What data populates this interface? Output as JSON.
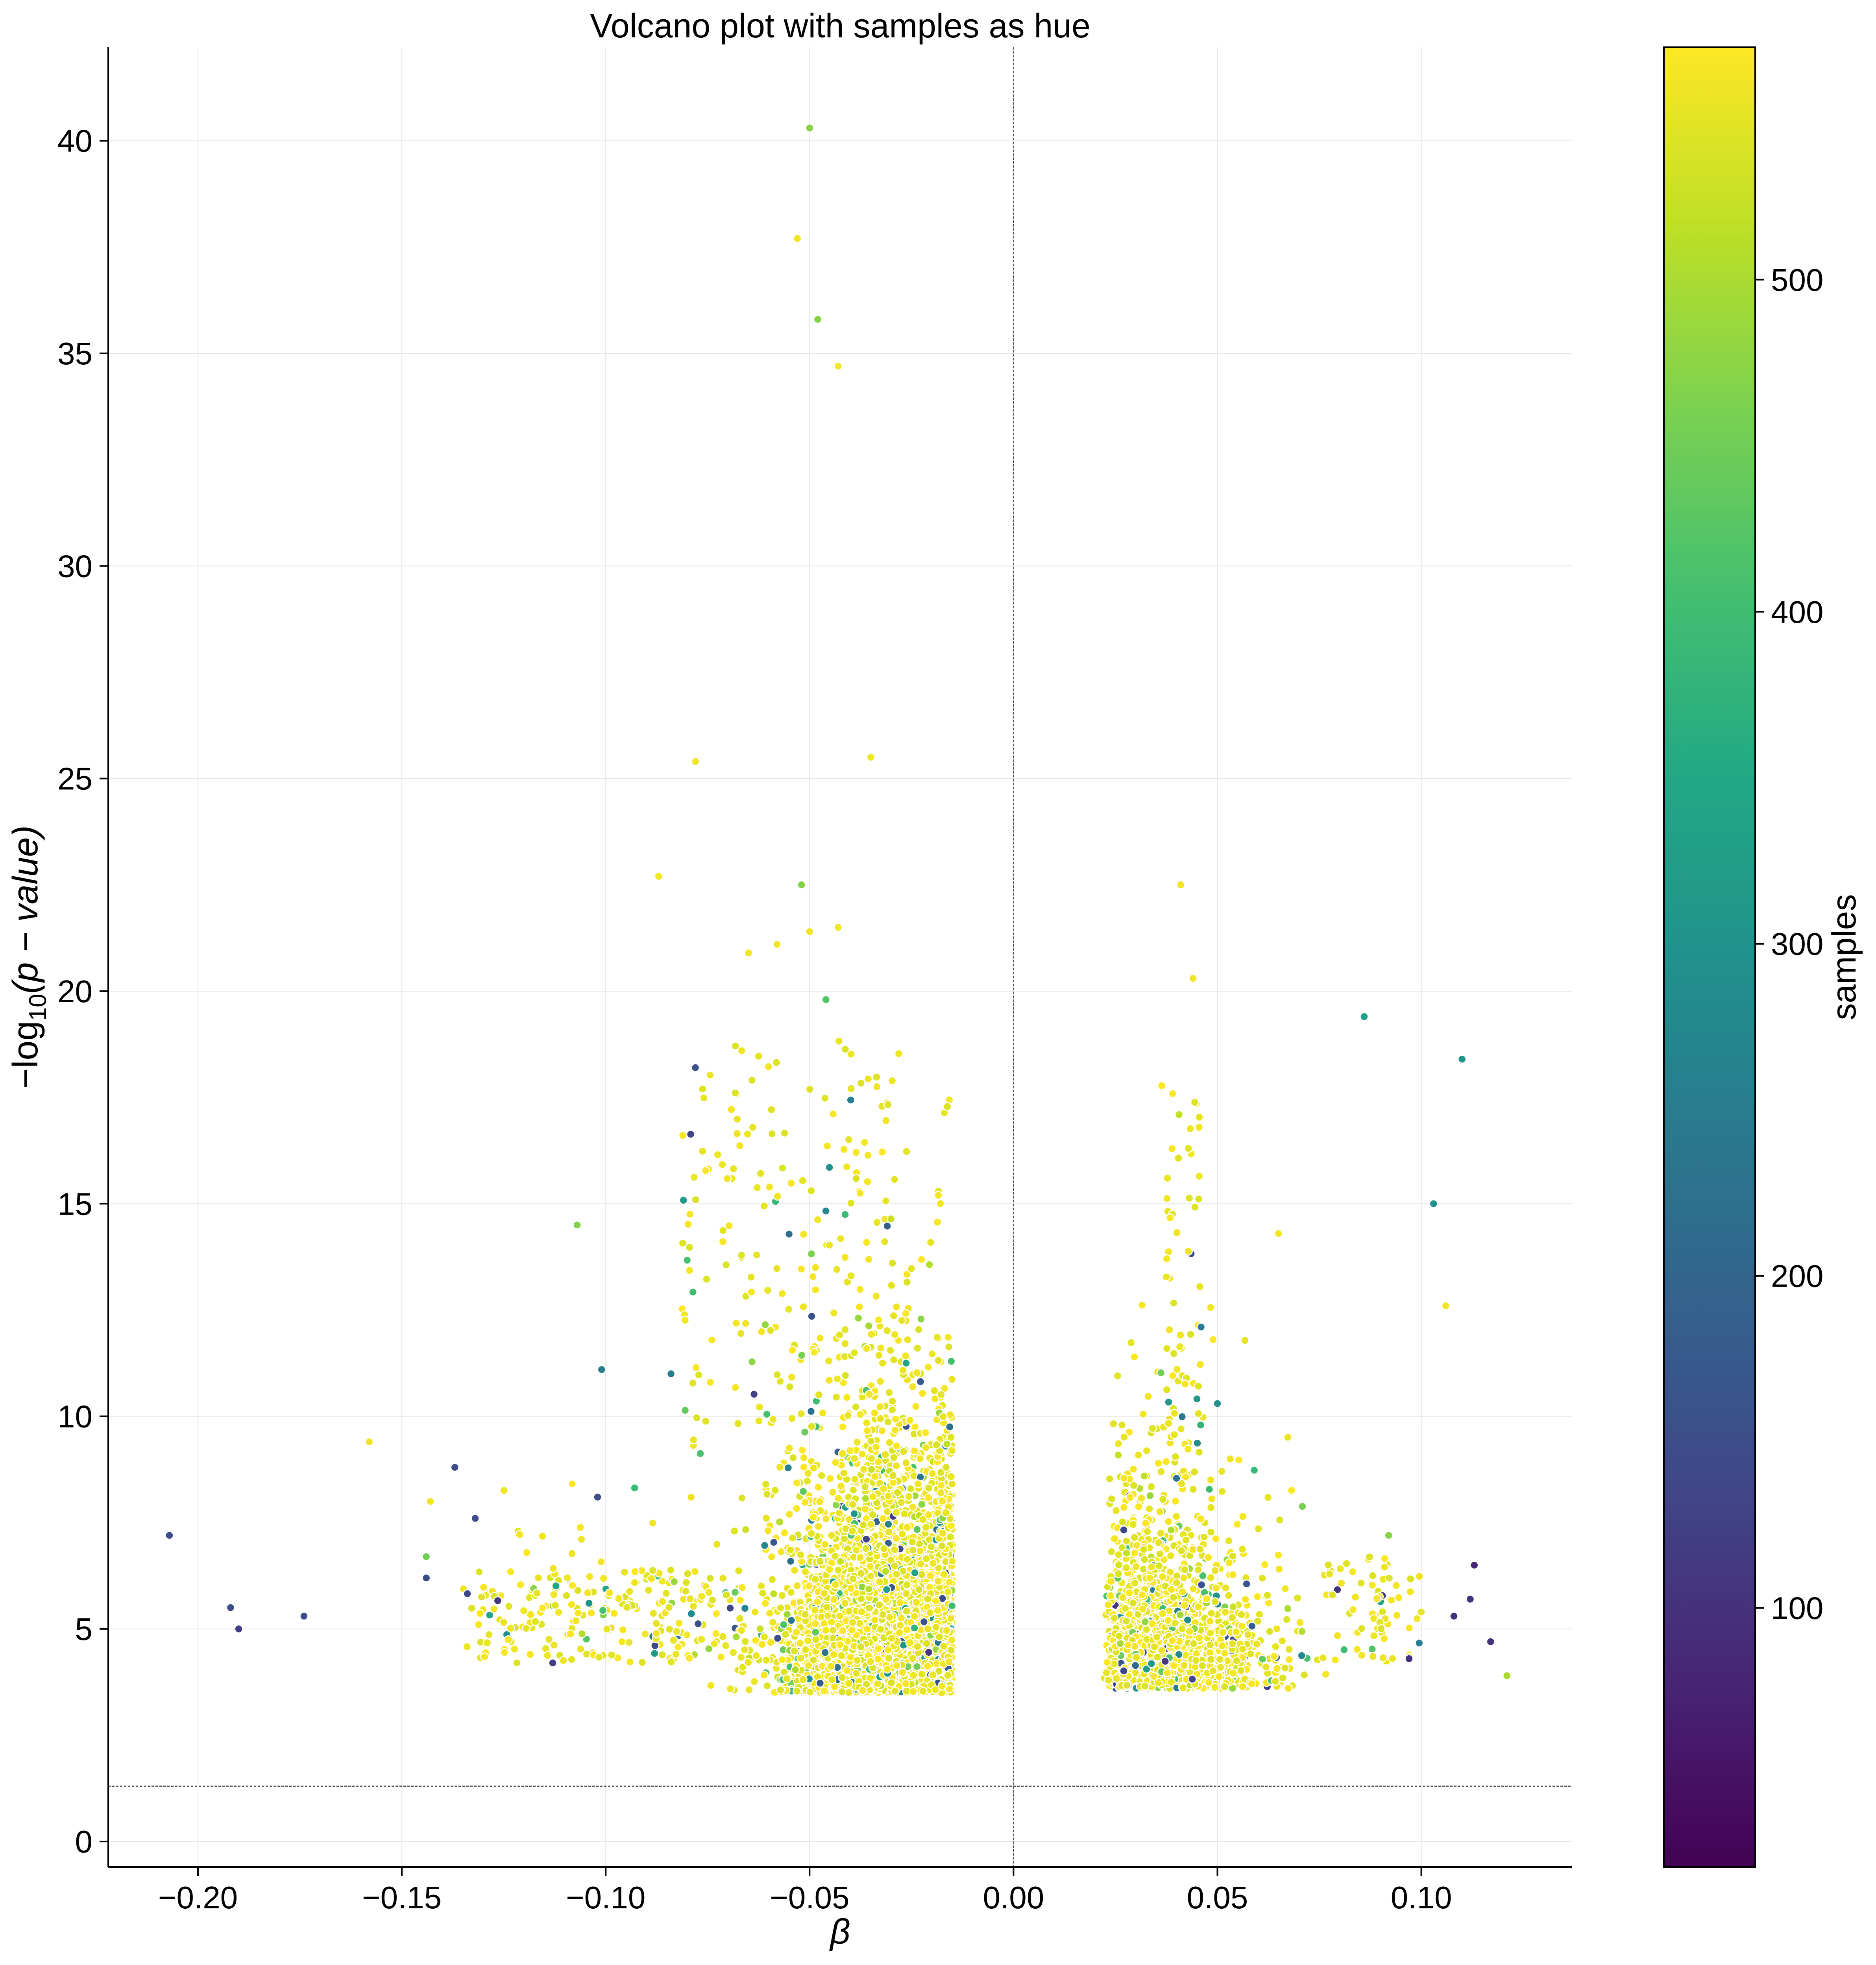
{
  "chart_data": {
    "type": "scatter",
    "title": "Volcano plot with samples as hue",
    "xlabel": "β",
    "ylabel_prefix": "−log",
    "ylabel_sub": "10",
    "ylabel_suffix": "(p − value)",
    "xlim": [
      -0.222,
      0.137
    ],
    "ylim": [
      -0.6,
      42.2
    ],
    "xticks": [
      -0.2,
      -0.15,
      -0.1,
      -0.05,
      0.0,
      0.05,
      0.1
    ],
    "xtick_labels": [
      "−0.20",
      "−0.15",
      "−0.10",
      "−0.05",
      "0.00",
      "0.05",
      "0.10"
    ],
    "yticks": [
      0,
      5,
      10,
      15,
      20,
      25,
      30,
      35,
      40
    ],
    "ytick_labels": [
      "0",
      "5",
      "10",
      "15",
      "20",
      "25",
      "30",
      "35",
      "40"
    ],
    "grid": true,
    "reference_lines": {
      "vertical_x": 0.0,
      "horizontal_y": 1.3
    },
    "colorbar": {
      "label": "samples",
      "colormap": "viridis",
      "range": [
        22,
        570
      ],
      "ticks": [
        100,
        200,
        300,
        400,
        500
      ],
      "tick_labels": [
        "100",
        "200",
        "300",
        "400",
        "500"
      ]
    },
    "colors": {
      "viridis": [
        "#440154",
        "#482475",
        "#414487",
        "#355f8d",
        "#2a788e",
        "#21918c",
        "#22a884",
        "#44bf70",
        "#7ad151",
        "#bddf26",
        "#fde725"
      ],
      "point_edge": "#ffffff",
      "grid": "#e6e6e6",
      "ref_line": "#555555"
    },
    "highlighted_points": [
      {
        "x": -0.05,
        "y": 40.3,
        "samples": 470
      },
      {
        "x": -0.053,
        "y": 37.7,
        "samples": 560
      },
      {
        "x": -0.048,
        "y": 35.8,
        "samples": 470
      },
      {
        "x": -0.043,
        "y": 34.7,
        "samples": 560
      },
      {
        "x": -0.035,
        "y": 25.5,
        "samples": 560
      },
      {
        "x": -0.078,
        "y": 25.4,
        "samples": 560
      },
      {
        "x": -0.087,
        "y": 22.7,
        "samples": 560
      },
      {
        "x": -0.052,
        "y": 22.5,
        "samples": 470
      },
      {
        "x": 0.041,
        "y": 22.5,
        "samples": 560
      },
      {
        "x": -0.05,
        "y": 21.4,
        "samples": 560
      },
      {
        "x": -0.043,
        "y": 21.5,
        "samples": 560
      },
      {
        "x": -0.058,
        "y": 21.1,
        "samples": 560
      },
      {
        "x": -0.065,
        "y": 20.9,
        "samples": 560
      },
      {
        "x": 0.044,
        "y": 20.3,
        "samples": 560
      },
      {
        "x": -0.046,
        "y": 19.8,
        "samples": 420
      },
      {
        "x": 0.086,
        "y": 19.4,
        "samples": 330
      },
      {
        "x": 0.11,
        "y": 18.4,
        "samples": 300
      },
      {
        "x": -0.078,
        "y": 18.2,
        "samples": 160
      },
      {
        "x": -0.107,
        "y": 14.5,
        "samples": 470
      },
      {
        "x": 0.103,
        "y": 15.0,
        "samples": 300
      },
      {
        "x": 0.065,
        "y": 14.3,
        "samples": 560
      },
      {
        "x": 0.106,
        "y": 12.6,
        "samples": 560
      },
      {
        "x": -0.158,
        "y": 9.4,
        "samples": 560
      },
      {
        "x": -0.137,
        "y": 8.8,
        "samples": 150
      },
      {
        "x": -0.101,
        "y": 11.1,
        "samples": 250
      },
      {
        "x": -0.084,
        "y": 11.0,
        "samples": 250
      },
      {
        "x": 0.05,
        "y": 10.3,
        "samples": 300
      },
      {
        "x": 0.046,
        "y": 12.1,
        "samples": 250
      },
      {
        "x": -0.207,
        "y": 7.2,
        "samples": 150
      },
      {
        "x": -0.192,
        "y": 5.5,
        "samples": 150
      },
      {
        "x": -0.19,
        "y": 5.0,
        "samples": 120
      },
      {
        "x": -0.174,
        "y": 5.3,
        "samples": 150
      },
      {
        "x": -0.144,
        "y": 6.2,
        "samples": 150
      },
      {
        "x": -0.144,
        "y": 6.7,
        "samples": 450
      },
      {
        "x": -0.143,
        "y": 8.0,
        "samples": 560
      },
      {
        "x": -0.132,
        "y": 7.6,
        "samples": 150
      },
      {
        "x": -0.113,
        "y": 4.2,
        "samples": 120
      },
      {
        "x": -0.102,
        "y": 8.1,
        "samples": 150
      },
      {
        "x": 0.121,
        "y": 3.9,
        "samples": 500
      },
      {
        "x": 0.117,
        "y": 4.7,
        "samples": 100
      },
      {
        "x": 0.113,
        "y": 6.5,
        "samples": 80
      },
      {
        "x": 0.112,
        "y": 5.7,
        "samples": 100
      },
      {
        "x": 0.108,
        "y": 5.3,
        "samples": 100
      },
      {
        "x": 0.097,
        "y": 4.3,
        "samples": 100
      },
      {
        "x": 0.092,
        "y": 7.2,
        "samples": 470
      }
    ]
  }
}
